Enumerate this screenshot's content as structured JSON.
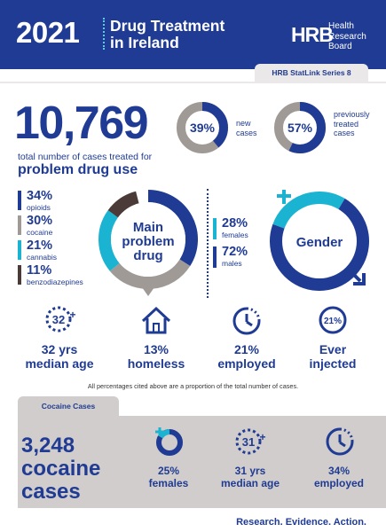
{
  "header": {
    "year": "2021",
    "title_line1": "Drug Treatment",
    "title_line2": "in Ireland",
    "logo_mark": "HRB",
    "logo_line1": "Health",
    "logo_line2": "Research",
    "logo_line3": "Board",
    "series": "HRB StatLink Series 8"
  },
  "total": {
    "value": "10,769",
    "caption": "total number of cases treated for",
    "caption_bold": "problem drug use"
  },
  "rings": [
    {
      "pct": "39%",
      "fraction": 0.39,
      "label_lines": [
        "new",
        "cases"
      ]
    },
    {
      "pct": "57%",
      "fraction": 0.57,
      "label_lines": [
        "previously",
        "treated",
        "cases"
      ]
    }
  ],
  "main_drug": {
    "title_lines": [
      "Main",
      "problem",
      "drug"
    ],
    "items": [
      {
        "pct": "34%",
        "label": "opioids",
        "color": "#1f3b93",
        "fraction": 0.34
      },
      {
        "pct": "30%",
        "label": "cocaine",
        "color": "#a09a97",
        "fraction": 0.3
      },
      {
        "pct": "21%",
        "label": "cannabis",
        "color": "#1ab3d1",
        "fraction": 0.21
      },
      {
        "pct": "11%",
        "label": "benzodiazepines",
        "color": "#4a3a38",
        "fraction": 0.11
      }
    ]
  },
  "gender": {
    "title": "Gender",
    "items": [
      {
        "pct": "28%",
        "label": "females",
        "color": "#1ab3d1",
        "fraction": 0.28
      },
      {
        "pct": "72%",
        "label": "males",
        "color": "#1f3b93",
        "fraction": 0.72
      }
    ]
  },
  "stats": [
    {
      "icon_text": "32",
      "value": "32 yrs",
      "label": "median age"
    },
    {
      "value": "13%",
      "label": "homeless"
    },
    {
      "value": "21%",
      "label": "employed"
    },
    {
      "icon_text": "21%",
      "value": "Ever",
      "label": "injected"
    }
  ],
  "note": "All percentages cited above are a proportion of the total number of cases.",
  "cocaine": {
    "tab": "Cocaine Cases",
    "count": "3,248",
    "word_line1": "cocaine",
    "word_line2": "cases",
    "stats": [
      {
        "value": "25%",
        "label": "females"
      },
      {
        "icon_text": "31",
        "value": "31 yrs",
        "label": "median age"
      },
      {
        "value": "34%",
        "label": "employed"
      }
    ]
  },
  "footer": {
    "tagline": "Research. Evidence. Action."
  },
  "colors": {
    "navy": "#1f3b93",
    "cyan": "#1ab3d1",
    "grey": "#a09a97",
    "brown": "#4a3a38",
    "panel": "#d1cdcc"
  }
}
